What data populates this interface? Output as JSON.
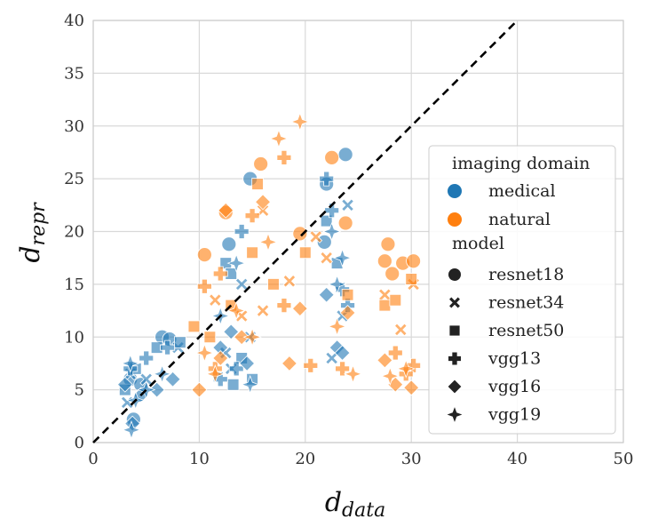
{
  "chart_data": {
    "type": "scatter",
    "title": "",
    "xlabel_main": "d",
    "xlabel_sub": "data",
    "ylabel_main": "d",
    "ylabel_sub": "repr",
    "xlim": [
      0,
      50
    ],
    "ylim": [
      0,
      40
    ],
    "xticks": [
      0,
      10,
      20,
      30,
      40,
      50
    ],
    "yticks": [
      0,
      5,
      10,
      15,
      20,
      25,
      30,
      35,
      40
    ],
    "xtick_labels": [
      "0",
      "10",
      "20",
      "30",
      "40",
      "50"
    ],
    "ytick_labels": [
      "0",
      "5",
      "10",
      "15",
      "20",
      "25",
      "30",
      "35",
      "40"
    ],
    "grid": true,
    "reference_line": {
      "style": "dashed",
      "color": "#000000",
      "x": [
        0,
        40
      ],
      "y": [
        0,
        40
      ]
    },
    "legend": {
      "placement": "right",
      "domain_title": "imaging domain",
      "domains": [
        {
          "name": "medical",
          "color": "#1f77b4"
        },
        {
          "name": "natural",
          "color": "#ff7f0e"
        }
      ],
      "model_title": "model",
      "models": [
        {
          "name": "resnet18",
          "marker": "circle"
        },
        {
          "name": "resnet34",
          "marker": "x"
        },
        {
          "name": "resnet50",
          "marker": "square"
        },
        {
          "name": "vgg13",
          "marker": "plus"
        },
        {
          "name": "vgg16",
          "marker": "diamond"
        },
        {
          "name": "vgg19",
          "marker": "star"
        }
      ]
    },
    "series": [
      {
        "domain": "medical",
        "model": "resnet18",
        "points": [
          [
            3.5,
            6
          ],
          [
            4.5,
            5.5
          ],
          [
            6.5,
            10
          ],
          [
            7.2,
            9.8
          ],
          [
            12.8,
            18.8
          ],
          [
            14.8,
            25
          ],
          [
            22,
            24.5
          ],
          [
            23.8,
            27.3
          ],
          [
            21.8,
            19
          ],
          [
            3.8,
            2.2
          ]
        ]
      },
      {
        "domain": "medical",
        "model": "resnet34",
        "points": [
          [
            3.5,
            6.5
          ],
          [
            5,
            6
          ],
          [
            8,
            9
          ],
          [
            12.5,
            8.5
          ],
          [
            14.8,
            10
          ],
          [
            13,
            7
          ],
          [
            23.5,
            12
          ],
          [
            24,
            22.5
          ],
          [
            22.5,
            8
          ],
          [
            3.2,
            3.8
          ],
          [
            14,
            15
          ]
        ]
      },
      {
        "domain": "medical",
        "model": "resnet50",
        "points": [
          [
            3,
            5
          ],
          [
            4,
            7
          ],
          [
            6,
            9
          ],
          [
            8.2,
            9.5
          ],
          [
            12.5,
            17
          ],
          [
            13,
            16
          ],
          [
            14,
            8
          ],
          [
            15,
            6
          ],
          [
            22,
            21
          ],
          [
            23,
            17
          ],
          [
            13.2,
            5.5
          ]
        ]
      },
      {
        "domain": "medical",
        "model": "vgg13",
        "points": [
          [
            3.5,
            7
          ],
          [
            5,
            8
          ],
          [
            7,
            9
          ],
          [
            12,
            6
          ],
          [
            14,
            20
          ],
          [
            13.5,
            7
          ],
          [
            22,
            25
          ],
          [
            23.5,
            14.5
          ],
          [
            24,
            13
          ],
          [
            22.5,
            22
          ]
        ]
      },
      {
        "domain": "medical",
        "model": "vgg16",
        "points": [
          [
            3,
            5.5
          ],
          [
            4.5,
            4.5
          ],
          [
            6,
            5
          ],
          [
            7.5,
            6
          ],
          [
            13,
            10.5
          ],
          [
            12,
            9
          ],
          [
            14.5,
            7.5
          ],
          [
            23,
            9
          ],
          [
            22,
            14
          ],
          [
            23.5,
            8.5
          ],
          [
            3.7,
            1.8
          ]
        ]
      },
      {
        "domain": "medical",
        "model": "vgg19",
        "points": [
          [
            3.5,
            7.5
          ],
          [
            4,
            4
          ],
          [
            5,
            5
          ],
          [
            6.5,
            6.5
          ],
          [
            12,
            12
          ],
          [
            13.5,
            17
          ],
          [
            14.8,
            5.5
          ],
          [
            22.5,
            20
          ],
          [
            23.5,
            17.5
          ],
          [
            23,
            15
          ],
          [
            3.6,
            1.2
          ]
        ]
      },
      {
        "domain": "natural",
        "model": "resnet18",
        "points": [
          [
            10.5,
            17.8
          ],
          [
            12.5,
            21.8
          ],
          [
            15.8,
            26.4
          ],
          [
            19.5,
            19.8
          ],
          [
            22.5,
            27
          ],
          [
            23.8,
            20.8
          ],
          [
            27.5,
            17.2
          ],
          [
            27.8,
            18.8
          ],
          [
            29.2,
            17
          ],
          [
            30.2,
            17.2
          ],
          [
            28.2,
            16
          ]
        ]
      },
      {
        "domain": "natural",
        "model": "resnet34",
        "points": [
          [
            11.5,
            13.5
          ],
          [
            14,
            12
          ],
          [
            16,
            12.5
          ],
          [
            18.5,
            15.3
          ],
          [
            21,
            19.5
          ],
          [
            22,
            17.5
          ],
          [
            27.5,
            14
          ],
          [
            29,
            10.7
          ],
          [
            30.2,
            15
          ],
          [
            16,
            22
          ]
        ]
      },
      {
        "domain": "natural",
        "model": "resnet50",
        "points": [
          [
            9.5,
            11
          ],
          [
            11,
            10
          ],
          [
            13,
            13
          ],
          [
            15,
            18
          ],
          [
            17,
            15
          ],
          [
            20,
            18
          ],
          [
            24,
            14
          ],
          [
            27.5,
            13
          ],
          [
            28.5,
            13.5
          ],
          [
            30,
            15.5
          ],
          [
            15.5,
            24.5
          ]
        ]
      },
      {
        "domain": "natural",
        "model": "vgg13",
        "points": [
          [
            10.5,
            14.8
          ],
          [
            12,
            16
          ],
          [
            15,
            21.5
          ],
          [
            18,
            13
          ],
          [
            18,
            27
          ],
          [
            20.5,
            7.3
          ],
          [
            23.5,
            7
          ],
          [
            28.5,
            8.5
          ],
          [
            30.2,
            7.3
          ],
          [
            29.5,
            6.5
          ],
          [
            11.5,
            7
          ]
        ]
      },
      {
        "domain": "natural",
        "model": "vgg16",
        "points": [
          [
            10,
            5
          ],
          [
            12,
            8
          ],
          [
            14,
            10
          ],
          [
            16,
            22.8
          ],
          [
            18.5,
            7.5
          ],
          [
            19.5,
            12.7
          ],
          [
            24,
            12.3
          ],
          [
            27.5,
            7.8
          ],
          [
            28.5,
            5.5
          ],
          [
            30,
            5.2
          ],
          [
            12.5,
            22
          ]
        ]
      },
      {
        "domain": "natural",
        "model": "vgg19",
        "points": [
          [
            10.5,
            8.5
          ],
          [
            11.5,
            6.5
          ],
          [
            13.5,
            12.5
          ],
          [
            15,
            10
          ],
          [
            17.5,
            28.8
          ],
          [
            19.5,
            30.4
          ],
          [
            23,
            11
          ],
          [
            24.5,
            6.5
          ],
          [
            28,
            6.3
          ],
          [
            29.5,
            7
          ],
          [
            16.5,
            19
          ]
        ]
      }
    ]
  }
}
